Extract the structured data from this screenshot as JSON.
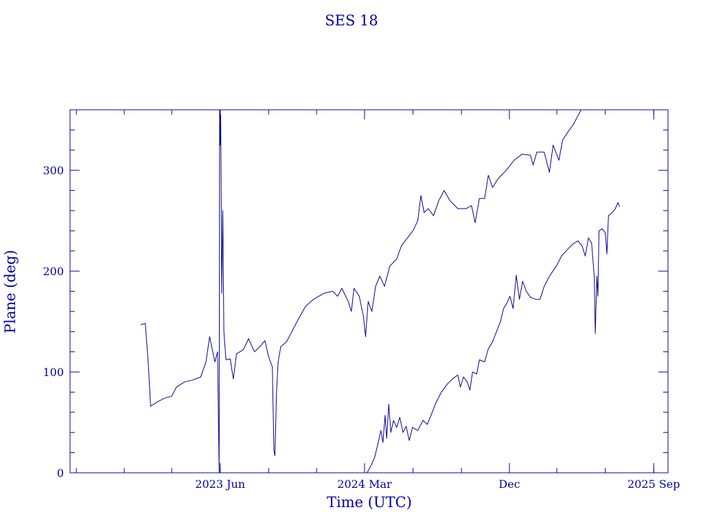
{
  "chart_data": {
    "type": "line",
    "title": "SES 18",
    "xlabel": "Time (UTC)",
    "ylabel": "Plane (deg)",
    "ylim": [
      0,
      360
    ],
    "xlim": [
      "2022-08-20",
      "2025-09-28"
    ],
    "yticks": [
      0,
      100,
      200,
      300
    ],
    "xticks": [
      {
        "date": "2023-06-01",
        "label": "2023 Jun"
      },
      {
        "date": "2024-03-01",
        "label": "2024 Mar"
      },
      {
        "date": "2024-12-01",
        "label": "Dec"
      },
      {
        "date": "2025-09-01",
        "label": "2025 Sep"
      }
    ],
    "grid": false,
    "legend": "none",
    "color": "#00008b",
    "series": [
      {
        "points": [
          [
            "2023-01-01",
            147
          ],
          [
            "2023-01-10",
            148
          ],
          [
            "2023-01-16",
            105
          ],
          [
            "2023-01-20",
            66
          ],
          [
            "2023-02-01",
            70
          ],
          [
            "2023-02-15",
            74
          ],
          [
            "2023-03-01",
            76
          ],
          [
            "2023-03-10",
            85
          ],
          [
            "2023-03-25",
            90
          ],
          [
            "2023-04-10",
            92
          ],
          [
            "2023-04-25",
            95
          ],
          [
            "2023-05-05",
            110
          ],
          [
            "2023-05-12",
            135
          ],
          [
            "2023-05-16",
            125
          ],
          [
            "2023-05-22",
            110
          ],
          [
            "2023-05-27",
            120
          ],
          [
            "2023-05-30",
            0
          ],
          [
            "2023-05-31",
            360
          ],
          [
            "2023-06-01",
            325
          ],
          [
            "2023-06-02",
            355
          ],
          [
            "2023-06-04",
            178
          ],
          [
            "2023-06-06",
            260
          ],
          [
            "2023-06-08",
            140
          ],
          [
            "2023-06-12",
            112
          ],
          [
            "2023-06-20",
            113
          ],
          [
            "2023-06-26",
            93
          ],
          [
            "2023-07-02",
            118
          ],
          [
            "2023-07-15",
            122
          ],
          [
            "2023-07-25",
            133
          ],
          [
            "2023-08-05",
            120
          ],
          [
            "2023-08-15",
            125
          ],
          [
            "2023-08-25",
            131
          ],
          [
            "2023-09-01",
            115
          ],
          [
            "2023-09-08",
            105
          ],
          [
            "2023-09-11",
            22
          ],
          [
            "2023-09-13",
            17
          ],
          [
            "2023-09-16",
            80
          ],
          [
            "2023-09-19",
            110
          ],
          [
            "2023-09-24",
            125
          ],
          [
            "2023-10-05",
            130
          ],
          [
            "2023-10-15",
            140
          ],
          [
            "2023-10-25",
            150
          ],
          [
            "2023-11-10",
            165
          ],
          [
            "2023-11-25",
            172
          ],
          [
            "2023-12-15",
            178
          ],
          [
            "2024-01-01",
            180
          ],
          [
            "2024-01-10",
            175
          ],
          [
            "2024-01-18",
            183
          ],
          [
            "2024-01-30",
            170
          ],
          [
            "2024-02-05",
            160
          ],
          [
            "2024-02-10",
            183
          ],
          [
            "2024-02-20",
            175
          ],
          [
            "2024-02-28",
            155
          ],
          [
            "2024-03-03",
            135
          ],
          [
            "2024-03-08",
            170
          ],
          [
            "2024-03-15",
            160
          ],
          [
            "2024-03-22",
            185
          ],
          [
            "2024-03-30",
            195
          ],
          [
            "2024-04-08",
            185
          ],
          [
            "2024-04-18",
            205
          ],
          [
            "2024-05-01",
            212
          ],
          [
            "2024-05-10",
            225
          ],
          [
            "2024-05-20",
            232
          ],
          [
            "2024-06-01",
            240
          ],
          [
            "2024-06-10",
            250
          ],
          [
            "2024-06-16",
            275
          ],
          [
            "2024-06-22",
            258
          ],
          [
            "2024-06-30",
            262
          ],
          [
            "2024-07-10",
            255
          ],
          [
            "2024-07-20",
            270
          ],
          [
            "2024-07-30",
            280
          ],
          [
            "2024-08-10",
            270
          ],
          [
            "2024-08-25",
            262
          ],
          [
            "2024-09-10",
            262
          ],
          [
            "2024-09-20",
            265
          ],
          [
            "2024-09-27",
            248
          ],
          [
            "2024-10-05",
            272
          ],
          [
            "2024-10-15",
            272
          ],
          [
            "2024-10-22",
            295
          ],
          [
            "2024-10-30",
            283
          ],
          [
            "2024-11-10",
            292
          ],
          [
            "2024-11-25",
            300
          ],
          [
            "2024-12-10",
            310
          ],
          [
            "2024-12-25",
            316
          ],
          [
            "2025-01-10",
            315
          ],
          [
            "2025-01-15",
            305
          ],
          [
            "2025-01-22",
            318
          ],
          [
            "2025-02-05",
            318
          ],
          [
            "2025-02-15",
            298
          ],
          [
            "2025-02-22",
            325
          ],
          [
            "2025-03-05",
            310
          ],
          [
            "2025-03-12",
            330
          ],
          [
            "2025-03-22",
            338
          ],
          [
            "2025-04-01",
            345
          ],
          [
            "2025-04-08",
            352
          ],
          [
            "2025-04-16",
            360
          ]
        ]
      },
      {
        "points": [
          [
            "2024-03-06",
            0
          ],
          [
            "2024-03-14",
            8
          ],
          [
            "2024-03-20",
            15
          ],
          [
            "2024-03-26",
            28
          ],
          [
            "2024-04-01",
            42
          ],
          [
            "2024-04-05",
            30
          ],
          [
            "2024-04-09",
            57
          ],
          [
            "2024-04-12",
            34
          ],
          [
            "2024-04-16",
            68
          ],
          [
            "2024-04-20",
            40
          ],
          [
            "2024-04-25",
            52
          ],
          [
            "2024-05-01",
            45
          ],
          [
            "2024-05-07",
            55
          ],
          [
            "2024-05-13",
            40
          ],
          [
            "2024-05-19",
            46
          ],
          [
            "2024-05-25",
            32
          ],
          [
            "2024-05-31",
            45
          ],
          [
            "2024-06-10",
            42
          ],
          [
            "2024-06-20",
            52
          ],
          [
            "2024-06-28",
            48
          ],
          [
            "2024-07-06",
            58
          ],
          [
            "2024-07-15",
            70
          ],
          [
            "2024-07-25",
            80
          ],
          [
            "2024-08-05",
            88
          ],
          [
            "2024-08-15",
            93
          ],
          [
            "2024-08-25",
            97
          ],
          [
            "2024-08-30",
            85
          ],
          [
            "2024-09-05",
            95
          ],
          [
            "2024-09-12",
            90
          ],
          [
            "2024-09-17",
            82
          ],
          [
            "2024-09-22",
            100
          ],
          [
            "2024-09-30",
            98
          ],
          [
            "2024-10-05",
            112
          ],
          [
            "2024-10-15",
            110
          ],
          [
            "2024-10-22",
            123
          ],
          [
            "2024-10-30",
            130
          ],
          [
            "2024-11-08",
            142
          ],
          [
            "2024-11-14",
            150
          ],
          [
            "2024-11-20",
            163
          ],
          [
            "2024-11-26",
            168
          ],
          [
            "2024-12-02",
            175
          ],
          [
            "2024-12-08",
            163
          ],
          [
            "2024-12-14",
            196
          ],
          [
            "2024-12-20",
            172
          ],
          [
            "2024-12-26",
            190
          ],
          [
            "2025-01-02",
            180
          ],
          [
            "2025-01-10",
            174
          ],
          [
            "2025-01-20",
            172
          ],
          [
            "2025-01-28",
            172
          ],
          [
            "2025-02-05",
            185
          ],
          [
            "2025-02-15",
            195
          ],
          [
            "2025-02-28",
            205
          ],
          [
            "2025-03-10",
            215
          ],
          [
            "2025-03-22",
            222
          ],
          [
            "2025-04-01",
            227
          ],
          [
            "2025-04-10",
            230
          ],
          [
            "2025-04-18",
            225
          ],
          [
            "2025-04-24",
            215
          ],
          [
            "2025-04-30",
            233
          ],
          [
            "2025-05-06",
            228
          ],
          [
            "2025-05-11",
            195
          ],
          [
            "2025-05-13",
            138
          ],
          [
            "2025-05-16",
            195
          ],
          [
            "2025-05-18",
            175
          ],
          [
            "2025-05-20",
            240
          ],
          [
            "2025-05-26",
            242
          ],
          [
            "2025-06-01",
            238
          ],
          [
            "2025-06-04",
            217
          ],
          [
            "2025-06-07",
            255
          ],
          [
            "2025-06-14",
            258
          ],
          [
            "2025-06-20",
            262
          ],
          [
            "2025-06-25",
            268
          ],
          [
            "2025-06-28",
            264
          ]
        ]
      }
    ]
  }
}
